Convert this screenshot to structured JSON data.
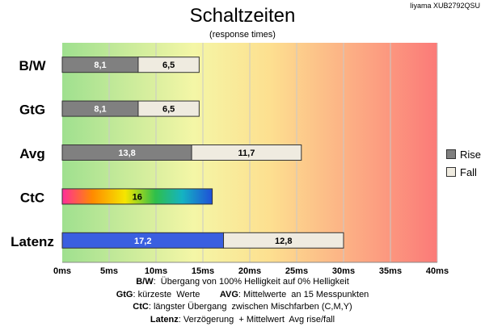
{
  "header": {
    "title": "Schaltzeiten",
    "subtitle": "(response times)",
    "monitor": "Iiyama XUB2792QSU"
  },
  "chart_data": {
    "type": "bar",
    "orientation": "horizontal",
    "stacked": true,
    "title": "Schaltzeiten",
    "subtitle": "(response times)",
    "categories": [
      "B/W",
      "GtG",
      "Avg",
      "CtC",
      "Latenz"
    ],
    "series": [
      {
        "name": "Rise",
        "values": [
          8.1,
          8.1,
          13.8,
          16,
          17.2
        ],
        "labels": [
          "8,1",
          "8,1",
          "13,8",
          "16",
          "17,2"
        ]
      },
      {
        "name": "Fall",
        "values": [
          6.5,
          6.5,
          11.7,
          null,
          12.8
        ],
        "labels": [
          "6,5",
          "6,5",
          "11,7",
          "",
          "12,8"
        ]
      }
    ],
    "xlim": [
      0,
      40
    ],
    "xticks": [
      "0ms",
      "5ms",
      "10ms",
      "15ms",
      "20ms",
      "25ms",
      "30ms",
      "35ms",
      "40ms"
    ],
    "grid": true,
    "legend_position": "right",
    "background": "gradient green to yellow to red",
    "colors": {
      "rise": "#808080",
      "fall": "#efebe0",
      "latenz_rise": "#3a5fe0",
      "ctc_gradient": [
        "#ff2d9a",
        "#ff8a00",
        "#f5e600",
        "#2fbf4a",
        "#14b3c2",
        "#1f4fd8"
      ]
    }
  },
  "legend": {
    "rise": "Rise",
    "fall": "Fall"
  },
  "notes": [
    {
      "key": "B/W",
      "text": ":  Übergang von 100% Helligkeit auf 0% Helligkeit"
    },
    {
      "key": "GtG",
      "text": ": kürzeste  Werte",
      "key2": "AVG",
      "text2": ": Mittelwerte  an 15 Messpunkten"
    },
    {
      "key": "CtC",
      "text": ": längster Übergang  zwischen Mischfarben (C,M,Y)"
    },
    {
      "key": "Latenz",
      "text": ": Verzögerung  + Mittelwert  Avg rise/fall"
    }
  ]
}
